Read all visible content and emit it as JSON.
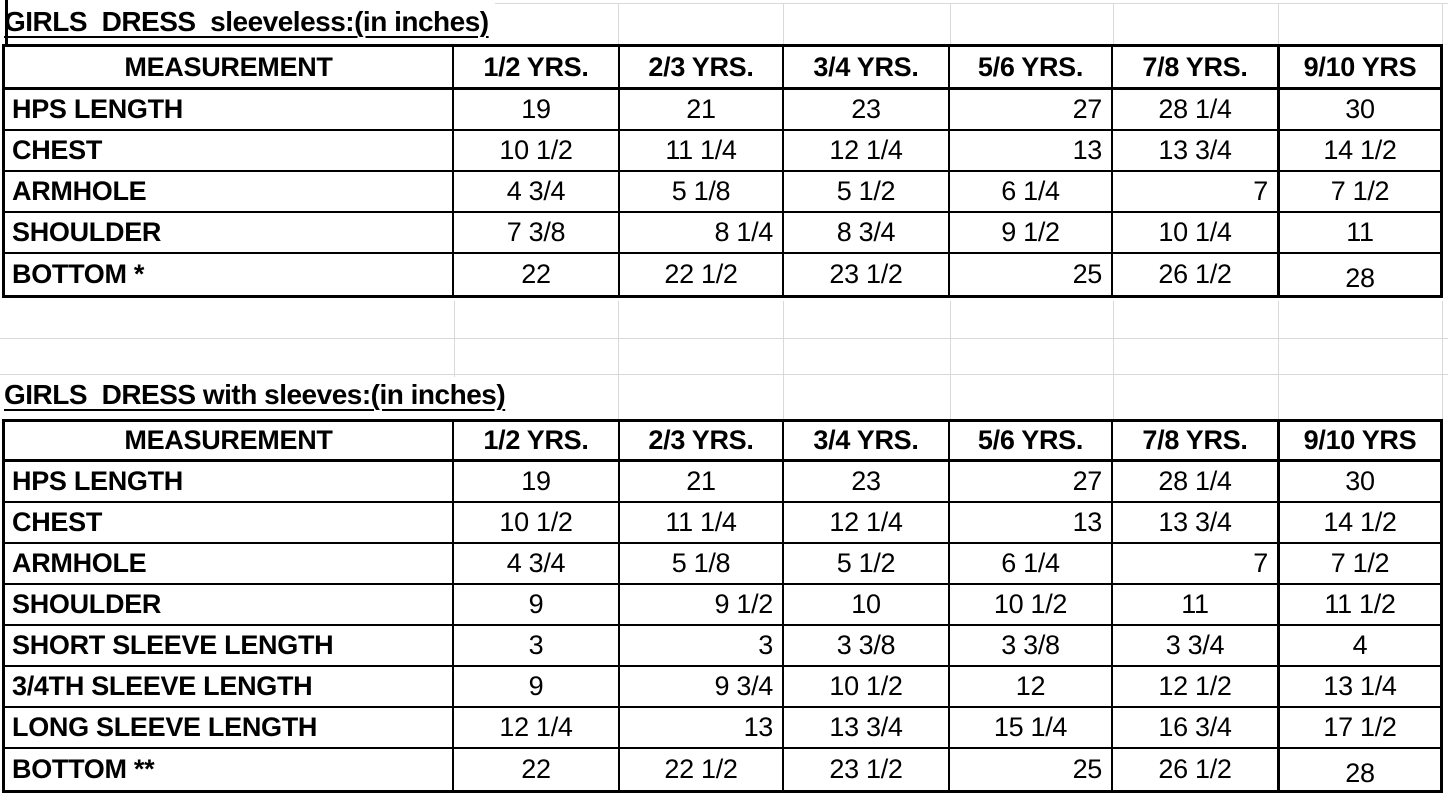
{
  "sheet": {
    "tables": [
      {
        "title": "GIRLS  DRESS  sleeveless:(in inches)",
        "measurement_header": "MEASUREMENT",
        "columns": [
          {
            "label": "1/2 YRS.",
            "align": "c"
          },
          {
            "label": "2/3 YRS.",
            "align": "c"
          },
          {
            "label": "3/4 YRS.",
            "align": "c"
          },
          {
            "label": "5/6 YRS.",
            "align": "c"
          },
          {
            "label": "7/8 YRS.",
            "align": "c"
          },
          {
            "label": "9/10 YRS",
            "align": "l"
          }
        ],
        "rows": [
          {
            "label": "HPS LENGTH",
            "values": [
              "19",
              "21",
              "23",
              "27",
              "28 1/4",
              "30"
            ],
            "align": [
              "c",
              "c",
              "c",
              "r",
              "c",
              "c"
            ]
          },
          {
            "label": "CHEST",
            "values": [
              "10 1/2",
              "11 1/4",
              "12 1/4",
              "13",
              "13 3/4",
              "14 1/2"
            ],
            "align": [
              "c",
              "c",
              "c",
              "r",
              "c",
              "c"
            ]
          },
          {
            "label": "ARMHOLE",
            "values": [
              "4 3/4",
              "5 1/8",
              "5 1/2",
              "6 1/4",
              "7",
              "7 1/2"
            ],
            "align": [
              "c",
              "c",
              "c",
              "c",
              "r",
              "c"
            ]
          },
          {
            "label": "SHOULDER",
            "values": [
              "7 3/8",
              "8 1/4",
              "8 3/4",
              "9 1/2",
              "10 1/4",
              "11"
            ],
            "align": [
              "c",
              "r",
              "c",
              "c",
              "c",
              "c"
            ]
          },
          {
            "label": "BOTTOM *",
            "values": [
              "22",
              "22 1/2",
              "23 1/2",
              "25",
              "26 1/2",
              "28"
            ],
            "align": [
              "c",
              "c",
              "c",
              "r",
              "c",
              "cb"
            ]
          }
        ]
      },
      {
        "title": "GIRLS  DRESS with sleeves:(in inches)",
        "measurement_header": "MEASUREMENT",
        "columns": [
          {
            "label": "1/2 YRS.",
            "align": "c"
          },
          {
            "label": "2/3 YRS.",
            "align": "c"
          },
          {
            "label": "3/4 YRS.",
            "align": "c"
          },
          {
            "label": "5/6 YRS.",
            "align": "c"
          },
          {
            "label": "7/8 YRS.",
            "align": "c"
          },
          {
            "label": "9/10 YRS",
            "align": "l"
          }
        ],
        "rows": [
          {
            "label": "HPS LENGTH",
            "values": [
              "19",
              "21",
              "23",
              "27",
              "28 1/4",
              "30"
            ],
            "align": [
              "c",
              "c",
              "c",
              "r",
              "c",
              "c"
            ]
          },
          {
            "label": "CHEST",
            "values": [
              "10 1/2",
              "11 1/4",
              "12 1/4",
              "13",
              "13 3/4",
              "14 1/2"
            ],
            "align": [
              "c",
              "c",
              "c",
              "r",
              "c",
              "c"
            ]
          },
          {
            "label": "ARMHOLE",
            "values": [
              "4 3/4",
              "5 1/8",
              "5 1/2",
              "6 1/4",
              "7",
              "7 1/2"
            ],
            "align": [
              "c",
              "c",
              "c",
              "c",
              "r",
              "c"
            ]
          },
          {
            "label": "SHOULDER",
            "values": [
              "9",
              "9 1/2",
              "10",
              "10 1/2",
              "11",
              "11 1/2"
            ],
            "align": [
              "c",
              "r",
              "c",
              "c",
              "c",
              "c"
            ]
          },
          {
            "label": "SHORT SLEEVE LENGTH",
            "values": [
              "3",
              "3",
              "3 3/8",
              "3 3/8",
              "3 3/4",
              "4"
            ],
            "align": [
              "c",
              "r",
              "c",
              "c",
              "c",
              "c"
            ]
          },
          {
            "label": "3/4TH SLEEVE LENGTH",
            "values": [
              "9",
              "9 3/4",
              "10 1/2",
              "12",
              "12 1/2",
              "13 1/4"
            ],
            "align": [
              "c",
              "r",
              "c",
              "c",
              "c",
              "c"
            ]
          },
          {
            "label": "LONG SLEEVE LENGTH",
            "values": [
              "12 1/4",
              "13",
              "13 3/4",
              "15 1/4",
              "16 3/4",
              "17 1/2"
            ],
            "align": [
              "c",
              "r",
              "c",
              "c",
              "c",
              "c"
            ]
          },
          {
            "label": "BOTTOM **",
            "values": [
              "22",
              "22 1/2",
              "23 1/2",
              "25",
              "26 1/2",
              "28"
            ],
            "align": [
              "c",
              "c",
              "c",
              "r",
              "c",
              "cb"
            ]
          }
        ]
      }
    ]
  }
}
